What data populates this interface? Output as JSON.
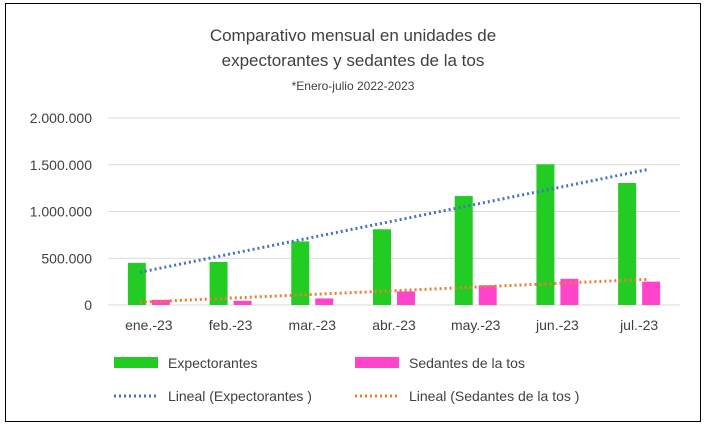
{
  "chart_data": {
    "type": "bar",
    "title_lines": [
      "Comparativo mensual en unidades de",
      "expectorantes y sedantes de la tos"
    ],
    "subtitle": "*Enero-julio 2022-2023",
    "categories": [
      "ene.-23",
      "feb.-23",
      "mar.-23",
      "abr.-23",
      "may.-23",
      "jun.-23",
      "jul.-23"
    ],
    "series": [
      {
        "name": "Expectorantes",
        "color": "#22cc22",
        "values": [
          450000,
          460000,
          680000,
          810000,
          1165000,
          1505000,
          1305000
        ]
      },
      {
        "name": "Sedantes de la tos",
        "color": "#ff44cc",
        "values": [
          55000,
          45000,
          70000,
          145000,
          210000,
          280000,
          250000
        ]
      }
    ],
    "trendlines": [
      {
        "name": "Lineal (Expectorantes )",
        "color": "#4472c4",
        "style": "dotted",
        "start": 350000,
        "end": 1450000
      },
      {
        "name": "Lineal (Sedantes de la tos )",
        "color": "#ed7d31",
        "style": "dotted",
        "start": 30000,
        "end": 275000
      }
    ],
    "ylim": [
      0,
      2000000
    ],
    "yticks": [
      {
        "value": 0,
        "label": "0"
      },
      {
        "value": 500000,
        "label": "500.000"
      },
      {
        "value": 1000000,
        "label": "1.000.000"
      },
      {
        "value": 1500000,
        "label": "1.500.000"
      },
      {
        "value": 2000000,
        "label": "2.000.000"
      }
    ],
    "grid": true,
    "legend_position": "bottom"
  }
}
